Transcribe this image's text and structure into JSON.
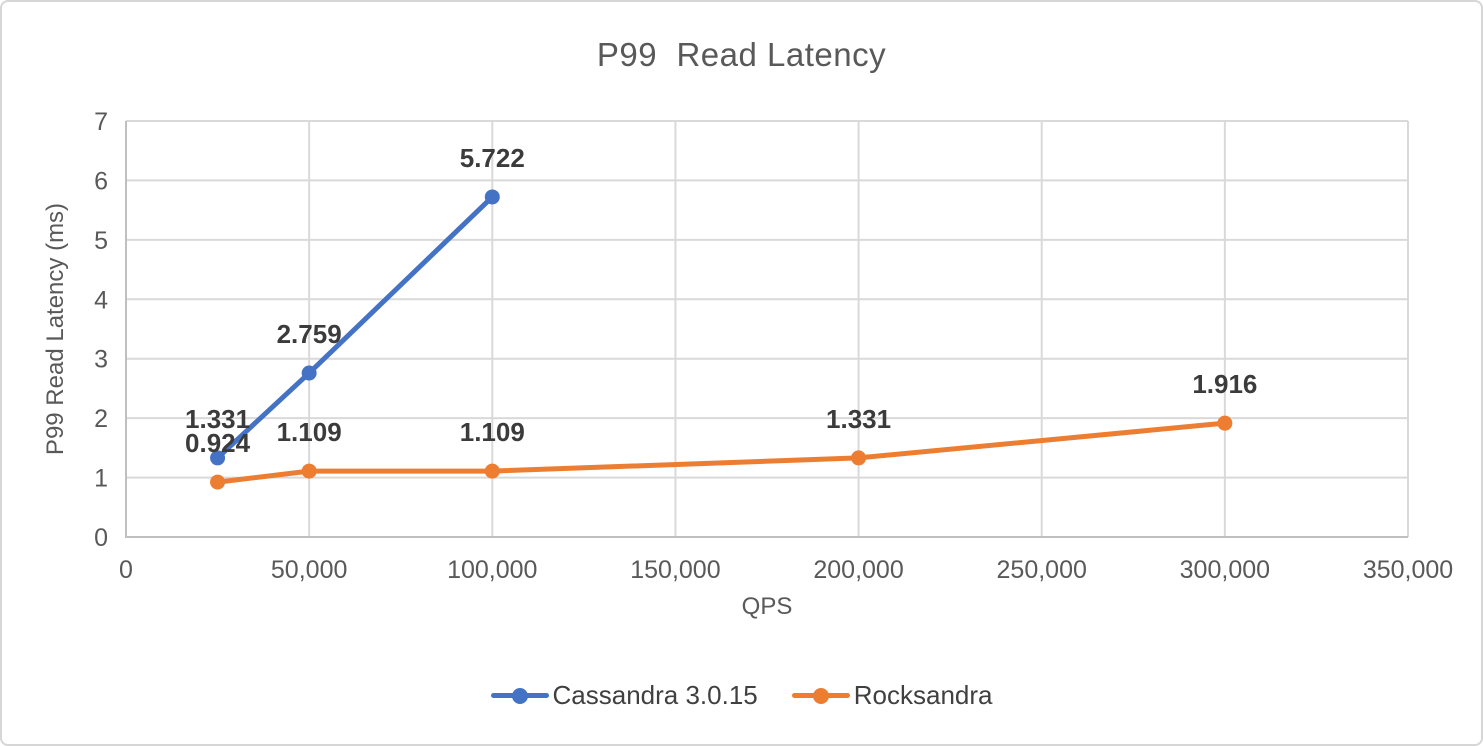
{
  "chart_data": {
    "type": "line",
    "title": "P99  Read Latency",
    "xlabel": "QPS",
    "ylabel": "P99 Read Latency (ms)",
    "xlim": [
      0,
      350000
    ],
    "ylim": [
      0,
      7
    ],
    "x_ticks": [
      0,
      50000,
      100000,
      150000,
      200000,
      250000,
      300000,
      350000
    ],
    "x_tick_labels": [
      "0",
      "50,000",
      "100,000",
      "150,000",
      "200,000",
      "250,000",
      "300,000",
      "350,000"
    ],
    "y_ticks": [
      0,
      1,
      2,
      3,
      4,
      5,
      6,
      7
    ],
    "y_tick_labels": [
      "0",
      "1",
      "2",
      "3",
      "4",
      "5",
      "6",
      "7"
    ],
    "grid": true,
    "legend_position": "bottom",
    "series": [
      {
        "name": "Cassandra 3.0.15",
        "color": "#4472C4",
        "x": [
          25000,
          50000,
          100000
        ],
        "y": [
          1.331,
          2.759,
          5.722
        ],
        "labels": [
          "1.331",
          "2.759",
          "5.722"
        ]
      },
      {
        "name": "Rocksandra",
        "color": "#ED7D31",
        "x": [
          25000,
          50000,
          100000,
          200000,
          300000
        ],
        "y": [
          0.924,
          1.109,
          1.109,
          1.331,
          1.916
        ],
        "labels": [
          "0.924",
          "1.109",
          "1.109",
          "1.331",
          "1.916"
        ]
      }
    ],
    "colors": {
      "grid": "#D9D9D9",
      "axis": "#BFBFBF",
      "tick_text": "#595959",
      "title_text": "#595959",
      "data_label_text": "#3B3B3B",
      "legend_text": "#404040"
    }
  }
}
